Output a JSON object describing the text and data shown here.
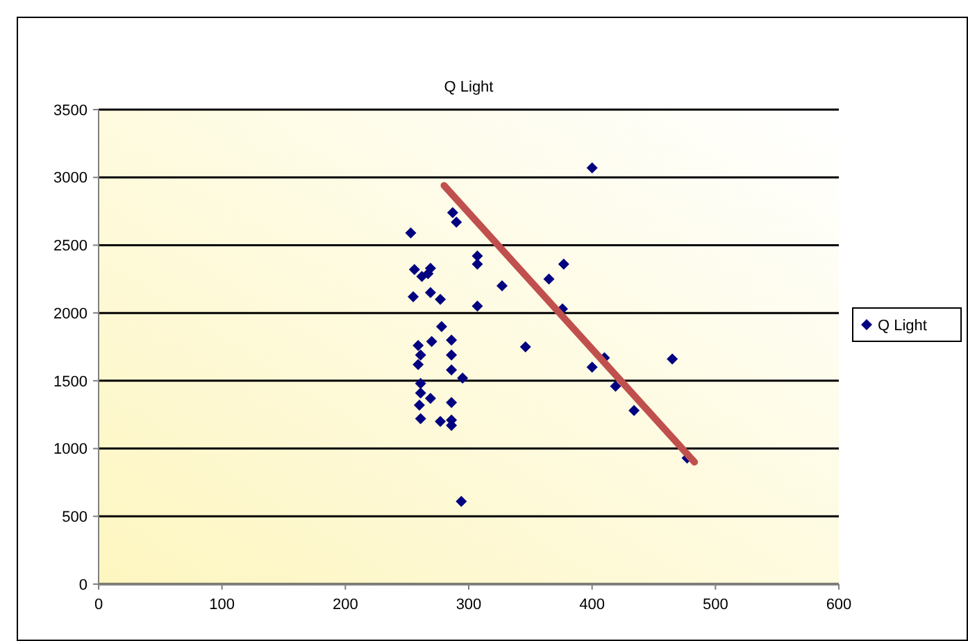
{
  "chart_data": {
    "type": "scatter",
    "title": "Q Light",
    "xlim": [
      0,
      600
    ],
    "ylim": [
      0,
      3500
    ],
    "xticks": [
      0,
      100,
      200,
      300,
      400,
      500,
      600
    ],
    "yticks": [
      0,
      500,
      1000,
      1500,
      2000,
      2500,
      3000,
      3500
    ],
    "grid": "y",
    "legend": "right",
    "series": [
      {
        "name": "Q Light",
        "color": "#000080",
        "marker": "diamond",
        "x": [
          278,
          270,
          259,
          286,
          261,
          286,
          259,
          286,
          295,
          261,
          261,
          269,
          286,
          260,
          261,
          277,
          286,
          286,
          294,
          287,
          290,
          253,
          307,
          307,
          256,
          269,
          262,
          267,
          255,
          269,
          277,
          307,
          400,
          327,
          365,
          377,
          376,
          346,
          400,
          410,
          465,
          419,
          434,
          477
        ],
        "values": [
          1900,
          1790,
          1760,
          1800,
          1690,
          1690,
          1620,
          1580,
          1520,
          1480,
          1410,
          1370,
          1340,
          1320,
          1220,
          1200,
          1170,
          1210,
          610,
          2740,
          2670,
          2590,
          2420,
          2360,
          2320,
          2330,
          2270,
          2290,
          2120,
          2150,
          2100,
          2050,
          3070,
          2200,
          2250,
          2360,
          2030,
          1750,
          1600,
          1670,
          1660,
          1460,
          1280,
          930
        ]
      },
      {
        "type": "line",
        "color": "#c0504d",
        "marker": "none",
        "x": [
          280,
          483
        ],
        "values": [
          2940,
          900
        ]
      }
    ]
  }
}
